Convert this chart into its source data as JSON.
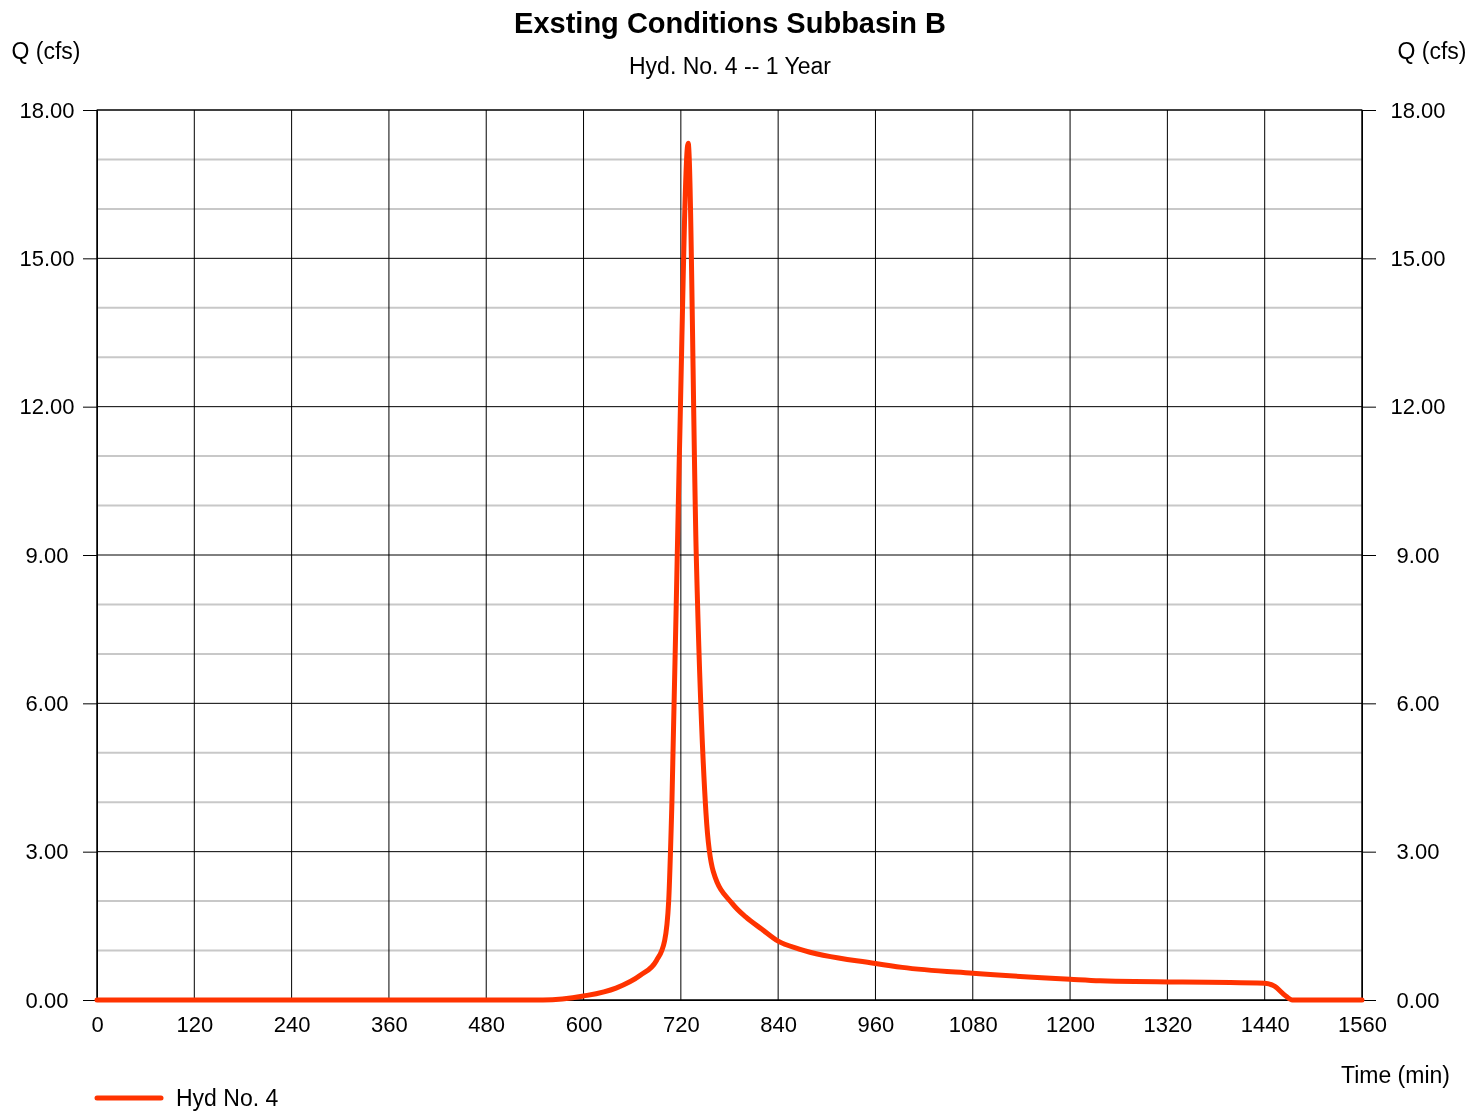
{
  "chart_data": {
    "type": "line",
    "title": "Exsting Conditions Subbasin B",
    "subtitle": "Hyd. No. 4 -- 1 Year",
    "xlabel": "Time (min)",
    "ylabel": "Q (cfs)",
    "y2label": "Q (cfs)",
    "xlim": [
      0,
      1560
    ],
    "xticks": [
      0,
      120,
      240,
      360,
      480,
      600,
      720,
      840,
      960,
      1080,
      1200,
      1320,
      1440,
      1560
    ],
    "ylim": [
      0,
      18
    ],
    "yticks": [
      {
        "value": 0,
        "label": "0.00"
      },
      {
        "value": 1,
        "label": null
      },
      {
        "value": 2,
        "label": null
      },
      {
        "value": 3,
        "label": "3.00"
      },
      {
        "value": 4,
        "label": null
      },
      {
        "value": 5,
        "label": null
      },
      {
        "value": 6,
        "label": "6.00"
      },
      {
        "value": 7,
        "label": null
      },
      {
        "value": 8,
        "label": null
      },
      {
        "value": 9,
        "label": "9.00"
      },
      {
        "value": 10,
        "label": null
      },
      {
        "value": 11,
        "label": null
      },
      {
        "value": 12,
        "label": "12.00"
      },
      {
        "value": 13,
        "label": null
      },
      {
        "value": 14,
        "label": null
      },
      {
        "value": 15,
        "label": "15.00"
      },
      {
        "value": 16,
        "label": null
      },
      {
        "value": 17,
        "label": null
      },
      {
        "value": 18,
        "label": "18.00"
      }
    ],
    "y2lim": [
      0,
      18
    ],
    "y2ticks": [
      {
        "value": 0,
        "label": "0.00"
      },
      {
        "value": 3,
        "label": "3.00"
      },
      {
        "value": 6,
        "label": "6.00"
      },
      {
        "value": 9,
        "label": "9.00"
      },
      {
        "value": 12,
        "label": "12.00"
      },
      {
        "value": 15,
        "label": "15.00"
      },
      {
        "value": 18,
        "label": "18.00"
      }
    ],
    "grid": true,
    "legend": "bottom left",
    "line_style": "solid",
    "marker": "none",
    "series": [
      {
        "name": "Hyd No. 4",
        "color": "#ff3300",
        "x": [
          0,
          550,
          600,
          640,
          670,
          690,
          700,
          705,
          709,
          718,
          729,
          739,
          751,
          760,
          784,
          800,
          820,
          840,
          866,
          960,
          993,
          1080,
          1200,
          1237,
          1440,
          1452,
          1466,
          1474,
          1560
        ],
        "values": [
          0,
          0,
          0.08,
          0.24,
          0.5,
          0.8,
          1.2,
          2.0,
          4.0,
          10.9,
          17.33,
          9.0,
          3.78,
          2.6,
          1.94,
          1.68,
          1.43,
          1.19,
          1.03,
          0.74,
          0.66,
          0.54,
          0.42,
          0.39,
          0.34,
          0.28,
          0.08,
          0,
          0
        ]
      }
    ]
  }
}
